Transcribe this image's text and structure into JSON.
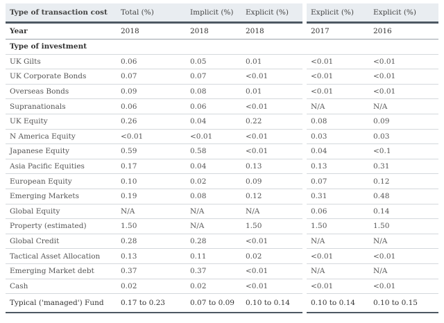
{
  "table": {
    "header": [
      "Type of transaction cost",
      "Total (%)",
      "Implicit (%)",
      "Explicit (%)",
      "Explicit (%)",
      "Explicit (%)"
    ],
    "year_row": [
      "Year",
      "2018",
      "2018",
      "2018",
      "2017",
      "2016"
    ],
    "section": "Type of investment",
    "rows": [
      [
        "UK Gilts",
        "0.06",
        "0.05",
        "0.01",
        "<0.01",
        "<0.01"
      ],
      [
        "UK Corporate Bonds",
        "0.07",
        "0.07",
        "<0.01",
        "<0.01",
        "<0.01"
      ],
      [
        "Overseas Bonds",
        "0.09",
        "0.08",
        "0.01",
        "<0.01",
        "<0.01"
      ],
      [
        "Supranationals",
        "0.06",
        "0.06",
        "<0.01",
        "N/A",
        "N/A"
      ],
      [
        "UK Equity",
        "0.26",
        "0.04",
        "0.22",
        "0.08",
        "0.09"
      ],
      [
        "N America Equity",
        "<0.01",
        "<0.01",
        "<0.01",
        "0.03",
        "0.03"
      ],
      [
        "Japanese Equity",
        "0.59",
        "0.58",
        "<0.01",
        "0.04",
        "<0.1"
      ],
      [
        "Asia Pacific Equities",
        "0.17",
        "0.04",
        "0.13",
        "0.13",
        "0.31"
      ],
      [
        "European Equity",
        "0.10",
        "0.02",
        "0.09",
        "0.07",
        "0.12"
      ],
      [
        "Emerging Markets",
        "0.19",
        "0.08",
        "0.12",
        "0.31",
        "0.48"
      ],
      [
        "Global Equity",
        "N/A",
        "N/A",
        "N/A",
        "0.06",
        "0.14"
      ],
      [
        "Property (estimated)",
        "1.50",
        "N/A",
        "1.50",
        "1.50",
        "1.50"
      ],
      [
        "Global Credit",
        "0.28",
        "0.28",
        "<0.01",
        "N/A",
        "N/A"
      ],
      [
        "Tactical Asset Allocation",
        "0.13",
        "0.11",
        "0.02",
        "<0.01",
        "<0.01"
      ],
      [
        "Emerging Market debt",
        "0.37",
        "0.37",
        "<0.01",
        "N/A",
        "N/A"
      ],
      [
        "Cash",
        "0.02",
        "0.02",
        "<0.01",
        "<0.01",
        "<0.01"
      ]
    ],
    "footer": [
      "Typical ('managed') Fund",
      "0.17 to 0.23",
      "0.07 to 0.09",
      "0.10 to 0.14",
      "0.10 to 0.14",
      "0.10 to 0.15"
    ]
  }
}
